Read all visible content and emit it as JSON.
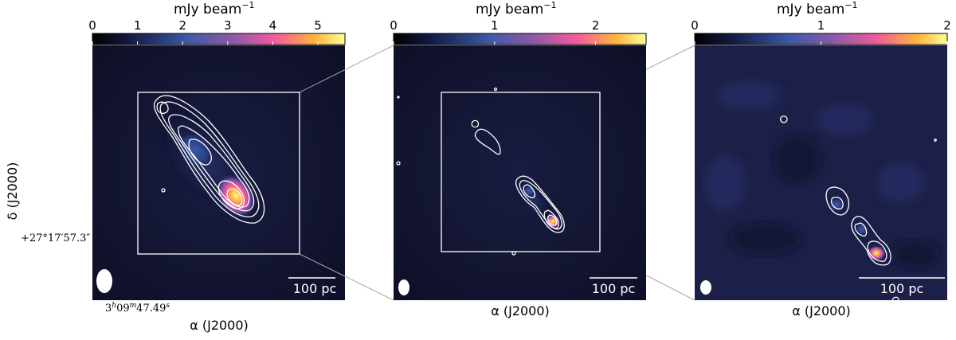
{
  "colorbar_label": "mJy beam",
  "colorbar_exponent": "−1",
  "panels": [
    {
      "name": "panel-left",
      "ticks": [
        "0",
        "1",
        "2",
        "3",
        "4",
        "5"
      ],
      "tick_values": [
        0,
        1,
        2,
        3,
        4,
        5
      ],
      "vmax": 5.6,
      "scalebar": "100 pc",
      "xlabel": "α (J2000)"
    },
    {
      "name": "panel-middle",
      "ticks": [
        "0",
        "1",
        "2"
      ],
      "tick_values": [
        0,
        1,
        2
      ],
      "vmax": 2.5,
      "scalebar": "100 pc",
      "xlabel": "α (J2000)"
    },
    {
      "name": "panel-right",
      "ticks": [
        "0",
        "1",
        "2"
      ],
      "tick_values": [
        0,
        1,
        2
      ],
      "vmax": 2.0,
      "scalebar": "100 pc",
      "xlabel": "α (J2000)"
    }
  ],
  "ylabel": "δ (J2000)",
  "dec_tick": "+27°17′57.3″",
  "ra_tick": {
    "h": "3",
    "h_unit": "h",
    "m": "09",
    "m_unit": "m",
    "s": "47.49",
    "s_unit": "s"
  },
  "colors": {
    "background_map": "#10122b",
    "contour": "#ffffff",
    "zoom_lines": "#aaaaaa",
    "colormap": [
      "#000000",
      "#1a1f4d",
      "#3f5cad",
      "#a05a9c",
      "#ff5aa0",
      "#ffc03a",
      "#ffff90"
    ]
  }
}
